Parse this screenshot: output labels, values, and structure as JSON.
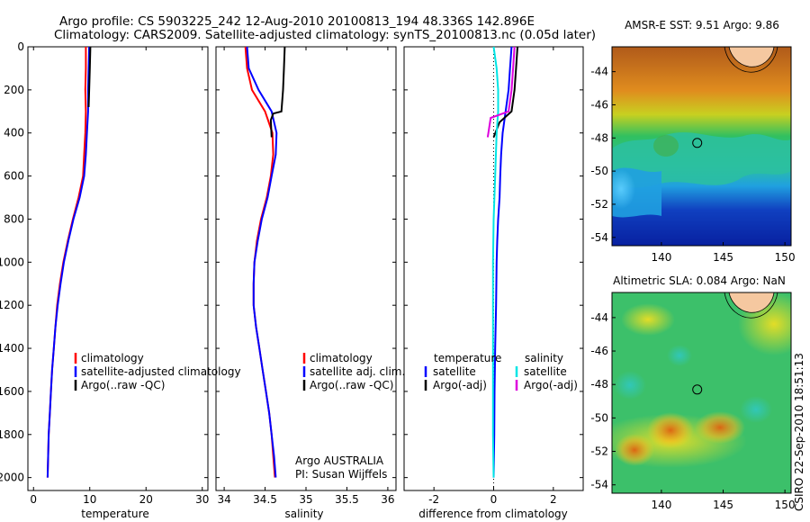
{
  "header": {
    "line1": "Argo profile: CS 5903225_242 12-Aug-2010 20100813_194 48.336S 142.896E",
    "line2": "Climatology: CARS2009. Satellite-adjusted climatology: synTS_20100813.nc (0.05d later)"
  },
  "side_stamp": "CSIRO 22-Sep-2010 18:51:13",
  "credit": {
    "line1": "Argo AUSTRALIA",
    "line2": "PI: Susan Wijffels"
  },
  "colors": {
    "climatology": "#ff0000",
    "satellite": "#0000ff",
    "argo": "#000000",
    "cyan": "#00e5e5",
    "magenta": "#dd00dd"
  },
  "chart_data": [
    {
      "type": "line",
      "xlabel": "temperature",
      "xlim": [
        -1,
        31
      ],
      "xticks": [
        0,
        10,
        20,
        30
      ],
      "ylim": [
        0,
        2060
      ],
      "yticks": [
        0,
        200,
        400,
        600,
        800,
        1000,
        1200,
        1400,
        1600,
        1800,
        2000
      ],
      "y_reversed": true,
      "legend": [
        "climatology",
        "satellite-adjusted climatology",
        "Argo(..raw -QC)"
      ],
      "series": [
        {
          "name": "climatology",
          "color": "#ff0000",
          "points": [
            [
              9.3,
              0
            ],
            [
              9.3,
              100
            ],
            [
              9.2,
              200
            ],
            [
              9.3,
              300
            ],
            [
              9.2,
              400
            ],
            [
              9.0,
              500
            ],
            [
              8.8,
              600
            ],
            [
              8.0,
              700
            ],
            [
              7.0,
              800
            ],
            [
              6.1,
              900
            ],
            [
              5.3,
              1000
            ],
            [
              4.7,
              1100
            ],
            [
              4.2,
              1200
            ],
            [
              3.9,
              1300
            ],
            [
              3.6,
              1400
            ],
            [
              3.3,
              1500
            ],
            [
              3.1,
              1600
            ],
            [
              2.9,
              1700
            ],
            [
              2.7,
              1800
            ],
            [
              2.6,
              1900
            ],
            [
              2.5,
              2000
            ]
          ]
        },
        {
          "name": "satellite-adjusted climatology",
          "color": "#0000ff",
          "points": [
            [
              9.9,
              0
            ],
            [
              9.8,
              100
            ],
            [
              9.7,
              200
            ],
            [
              9.7,
              300
            ],
            [
              9.5,
              400
            ],
            [
              9.3,
              500
            ],
            [
              9.0,
              600
            ],
            [
              8.2,
              700
            ],
            [
              7.1,
              800
            ],
            [
              6.2,
              900
            ],
            [
              5.4,
              1000
            ],
            [
              4.8,
              1100
            ],
            [
              4.3,
              1200
            ],
            [
              3.9,
              1300
            ],
            [
              3.6,
              1400
            ],
            [
              3.3,
              1500
            ],
            [
              3.1,
              1600
            ],
            [
              2.9,
              1700
            ],
            [
              2.7,
              1800
            ],
            [
              2.6,
              1900
            ],
            [
              2.5,
              2000
            ]
          ]
        },
        {
          "name": "Argo(..raw -QC)",
          "color": "#000000",
          "points": [
            [
              10.1,
              0
            ],
            [
              10.0,
              100
            ],
            [
              9.9,
              200
            ],
            [
              9.8,
              280
            ]
          ]
        }
      ]
    },
    {
      "type": "line",
      "xlabel": "salinity",
      "xlim": [
        33.9,
        36.1
      ],
      "xticks": [
        34,
        34.5,
        35,
        35.5,
        36
      ],
      "ylim": [
        0,
        2060
      ],
      "y_reversed": true,
      "legend": [
        "climatology",
        "satellite adj. clim.",
        "Argo(..raw -QC)"
      ],
      "series": [
        {
          "name": "climatology",
          "color": "#ff0000",
          "points": [
            [
              34.26,
              0
            ],
            [
              34.28,
              100
            ],
            [
              34.34,
              200
            ],
            [
              34.5,
              300
            ],
            [
              34.59,
              400
            ],
            [
              34.6,
              500
            ],
            [
              34.57,
              600
            ],
            [
              34.52,
              700
            ],
            [
              34.45,
              800
            ],
            [
              34.4,
              900
            ],
            [
              34.37,
              1000
            ],
            [
              34.36,
              1100
            ],
            [
              34.36,
              1200
            ],
            [
              34.39,
              1300
            ],
            [
              34.43,
              1400
            ],
            [
              34.47,
              1500
            ],
            [
              34.51,
              1600
            ],
            [
              34.55,
              1700
            ],
            [
              34.58,
              1800
            ],
            [
              34.6,
              1900
            ],
            [
              34.62,
              2000
            ]
          ]
        },
        {
          "name": "satellite adj. clim.",
          "color": "#0000ff",
          "points": [
            [
              34.28,
              0
            ],
            [
              34.3,
              100
            ],
            [
              34.42,
              200
            ],
            [
              34.58,
              300
            ],
            [
              34.64,
              400
            ],
            [
              34.63,
              500
            ],
            [
              34.58,
              600
            ],
            [
              34.53,
              700
            ],
            [
              34.46,
              800
            ],
            [
              34.41,
              900
            ],
            [
              34.37,
              1000
            ],
            [
              34.36,
              1100
            ],
            [
              34.36,
              1200
            ],
            [
              34.39,
              1300
            ],
            [
              34.43,
              1400
            ],
            [
              34.47,
              1500
            ],
            [
              34.51,
              1600
            ],
            [
              34.55,
              1700
            ],
            [
              34.58,
              1800
            ],
            [
              34.61,
              1900
            ],
            [
              34.63,
              2000
            ]
          ]
        },
        {
          "name": "Argo(..raw -QC)",
          "color": "#000000",
          "points": [
            [
              34.74,
              0
            ],
            [
              34.73,
              100
            ],
            [
              34.72,
              200
            ],
            [
              34.7,
              300
            ],
            [
              34.6,
              310
            ],
            [
              34.57,
              340
            ],
            [
              34.58,
              420
            ]
          ]
        }
      ]
    },
    {
      "type": "line",
      "xlabel": "difference from climatology",
      "xlim": [
        -3,
        3
      ],
      "xticks": [
        -2,
        0,
        2
      ],
      "ylim": [
        0,
        2060
      ],
      "y_reversed": true,
      "legend_temperature": {
        "heading": "temperature",
        "items": [
          "satellite",
          "Argo(-adj)"
        ]
      },
      "legend_salinity": {
        "heading": "salinity",
        "items": [
          "satellite",
          "Argo(-adj)"
        ]
      },
      "series": [
        {
          "name": "temperature satellite",
          "color": "#0000ff",
          "points": [
            [
              0.6,
              0
            ],
            [
              0.55,
              100
            ],
            [
              0.5,
              200
            ],
            [
              0.4,
              300
            ],
            [
              0.3,
              400
            ],
            [
              0.25,
              500
            ],
            [
              0.22,
              600
            ],
            [
              0.2,
              700
            ],
            [
              0.15,
              800
            ],
            [
              0.12,
              900
            ],
            [
              0.1,
              1000
            ],
            [
              0.08,
              1200
            ],
            [
              0.05,
              1400
            ],
            [
              0.03,
              1600
            ],
            [
              0.02,
              1800
            ],
            [
              0.0,
              2000
            ]
          ]
        },
        {
          "name": "temperature Argo(-adj)",
          "color": "#000000",
          "points": [
            [
              0.8,
              0
            ],
            [
              0.75,
              100
            ],
            [
              0.7,
              200
            ],
            [
              0.6,
              300
            ],
            [
              0.2,
              350
            ],
            [
              0.0,
              420
            ]
          ]
        },
        {
          "name": "salinity satellite",
          "color": "#00e5e5",
          "points": [
            [
              0.0,
              0
            ],
            [
              0.1,
              100
            ],
            [
              0.15,
              200
            ],
            [
              0.15,
              300
            ],
            [
              0.1,
              400
            ],
            [
              0.05,
              600
            ],
            [
              0.0,
              800
            ],
            [
              -0.02,
              1000
            ],
            [
              -0.02,
              1400
            ],
            [
              -0.02,
              1800
            ],
            [
              0.0,
              2000
            ]
          ]
        },
        {
          "name": "salinity Argo(-adj)",
          "color": "#dd00dd",
          "points": [
            [
              0.7,
              0
            ],
            [
              0.65,
              100
            ],
            [
              0.6,
              200
            ],
            [
              0.5,
              300
            ],
            [
              -0.1,
              330
            ],
            [
              -0.2,
              420
            ]
          ]
        }
      ]
    },
    {
      "type": "heatmap",
      "title": "AMSR-E SST: 9.51 Argo: 9.86",
      "xlim": [
        136,
        150.5
      ],
      "xticks": [
        140,
        145,
        150
      ],
      "ylim": [
        -54.5,
        -42.5
      ],
      "yticks": [
        -44,
        -46,
        -48,
        -50,
        -52,
        -54
      ],
      "marker": [
        142.9,
        -48.3
      ]
    },
    {
      "type": "heatmap",
      "title": "Altimetric SLA: 0.084 Argo: NaN",
      "xlim": [
        136,
        150.5
      ],
      "xticks": [
        140,
        145,
        150
      ],
      "ylim": [
        -54.5,
        -42.5
      ],
      "yticks": [
        -44,
        -46,
        -48,
        -50,
        -52,
        -54
      ],
      "marker": [
        142.9,
        -48.3
      ]
    }
  ]
}
